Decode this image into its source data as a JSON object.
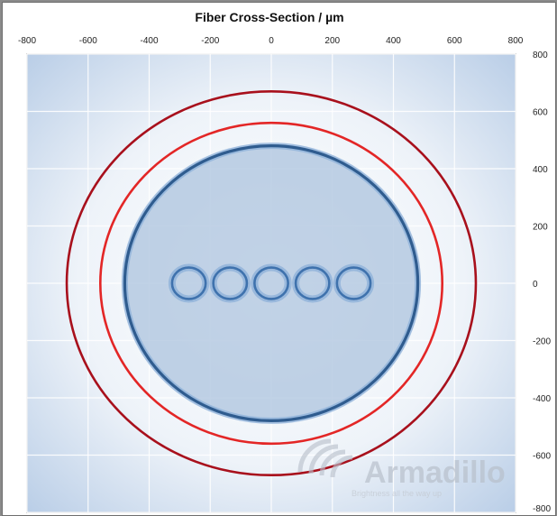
{
  "chart_data": {
    "type": "scatter",
    "title": "Fiber Cross-Section / µm",
    "xlim": [
      -800,
      800
    ],
    "ylim": [
      -800,
      800
    ],
    "x_ticks": [
      -800,
      -600,
      -400,
      -200,
      0,
      200,
      400,
      600,
      800
    ],
    "y_ticks": [
      800,
      600,
      400,
      200,
      0,
      -200,
      -400,
      -600,
      -800
    ],
    "grid": true,
    "x_axis_position": "top",
    "y_axis_position": "right",
    "series": [
      {
        "shape": "circle",
        "color": "#a8101c",
        "cx": 0,
        "cy": 0,
        "r": 670
      },
      {
        "shape": "circle",
        "color": "#e32626",
        "cx": 0,
        "cy": 0,
        "r": 560
      },
      {
        "shape": "circle",
        "color": "#2f5c8f",
        "cx": 0,
        "cy": 0,
        "r": 480,
        "filled": true
      },
      {
        "shape": "circle",
        "color": "#3f72ad",
        "cx": -270,
        "cy": 0,
        "r": 55
      },
      {
        "shape": "circle",
        "color": "#3f72ad",
        "cx": -135,
        "cy": 0,
        "r": 55
      },
      {
        "shape": "circle",
        "color": "#3f72ad",
        "cx": 0,
        "cy": 0,
        "r": 55
      },
      {
        "shape": "circle",
        "color": "#3f72ad",
        "cx": 135,
        "cy": 0,
        "r": 55
      },
      {
        "shape": "circle",
        "color": "#3f72ad",
        "cx": 270,
        "cy": 0,
        "r": 55
      }
    ]
  },
  "watermark": {
    "brand": "Armadillo",
    "tagline": "Brightness all the way up"
  },
  "colors": {
    "plot_glow_center": "#ffffff",
    "plot_glow_edge": "#b7cce6",
    "core_fill": "#a9c0dd",
    "gridline": "#ffffff"
  }
}
